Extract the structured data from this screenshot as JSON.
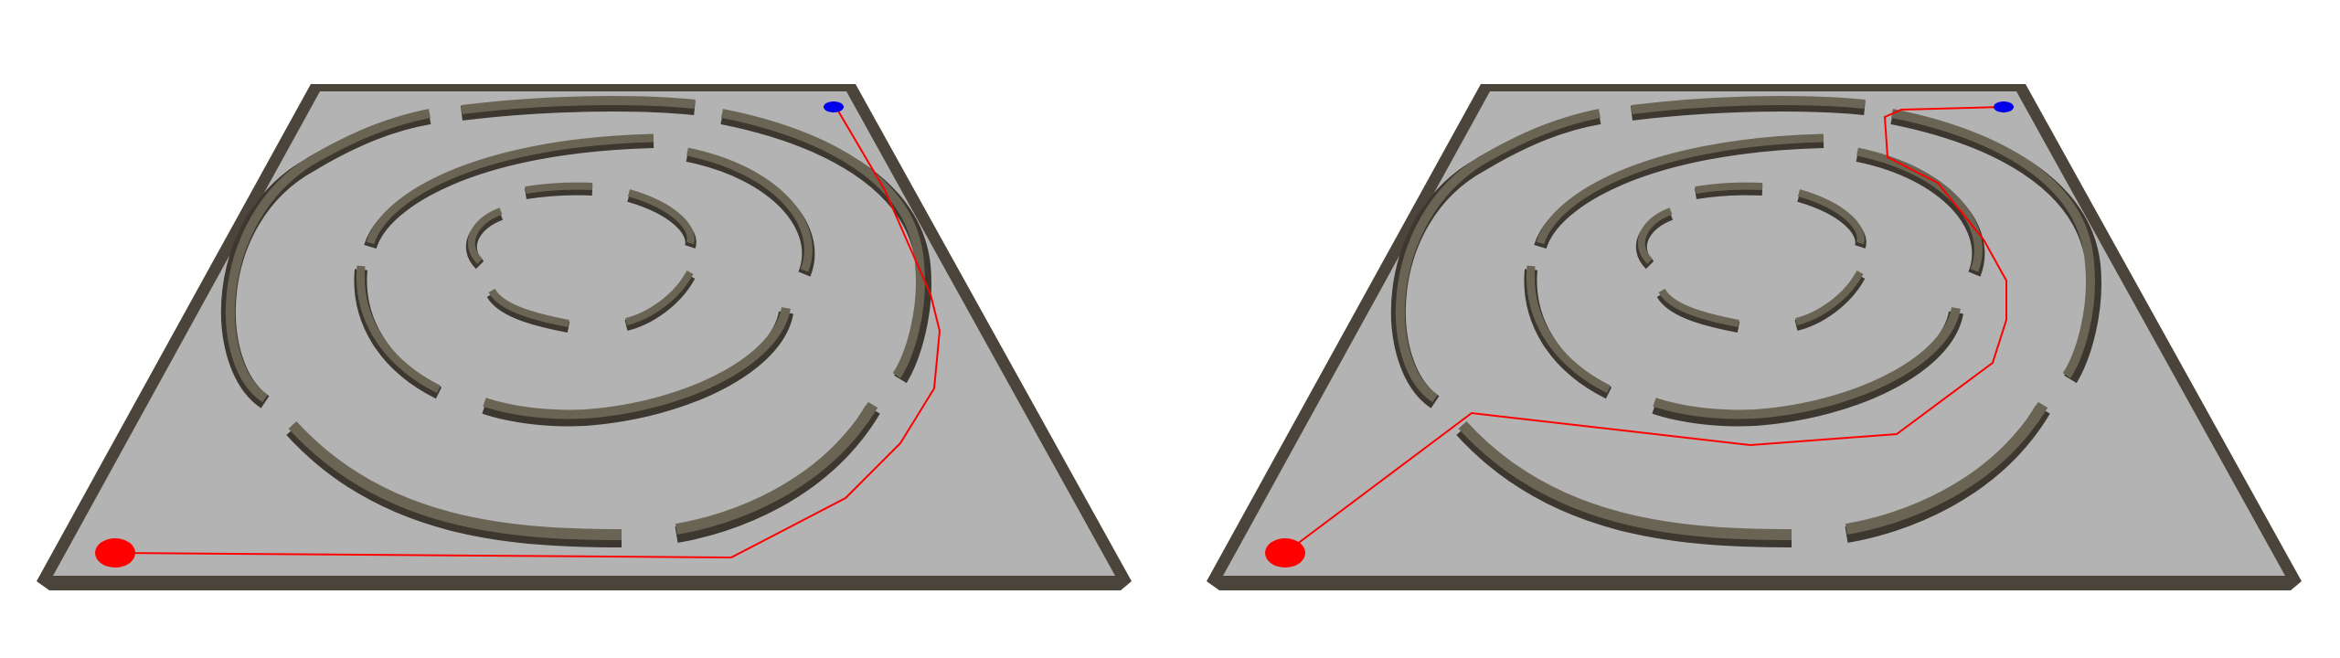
{
  "colors": {
    "background": "#ffffff",
    "floor": "#b3b3b3",
    "wall_top": "#5f5a4d",
    "wall_side": "#3b3630",
    "path": "#ff0000",
    "start_marker": "#ff0000",
    "goal_marker": "#0000ee"
  },
  "panels": [
    {
      "id": "left",
      "variant": "outer-ring-path"
    },
    {
      "id": "right",
      "variant": "inner-gaps-path"
    }
  ],
  "markers": {
    "start": {
      "shape": "ellipse",
      "color": "red"
    },
    "goal": {
      "shape": "ellipse",
      "color": "blue"
    }
  }
}
